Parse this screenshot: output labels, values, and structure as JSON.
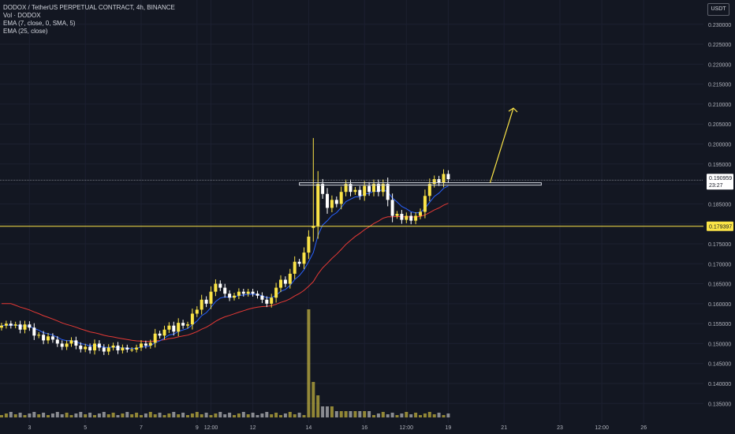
{
  "legend": {
    "symbol": "DODOX / TetherUS PERPETUAL CONTRACT, 4h, BINANCE",
    "volume": "Vol · DODOX",
    "ema_fast": "EMA (7, close, 0, SMA, 5)",
    "ema_slow": "EMA (25, close)"
  },
  "currency": "USDT",
  "price_tag": {
    "price": "0.190959",
    "countdown": "23:27"
  },
  "level_tag": {
    "price": "0.179397"
  },
  "colors": {
    "background": "#131722",
    "up_candle": "#fbe447",
    "down_candle": "#ffffff",
    "ema_fast": "#2962ff",
    "ema_slow": "#e53935",
    "level_line": "#fbe447",
    "arrow": "#fbe447"
  },
  "chart_data": {
    "type": "candlestick",
    "y_ticks": [
      "0.135000",
      "0.140000",
      "0.145000",
      "0.150000",
      "0.155000",
      "0.160000",
      "0.165000",
      "0.170000",
      "0.175000",
      "0.180000",
      "0.185000",
      "0.190000",
      "0.195000",
      "0.200000",
      "0.205000",
      "0.210000",
      "0.215000",
      "0.220000",
      "0.225000",
      "0.230000"
    ],
    "ylim": [
      0.1315,
      0.2345
    ],
    "x_ticks": [
      {
        "label": "3",
        "bar": 6
      },
      {
        "label": "5",
        "bar": 18
      },
      {
        "label": "7",
        "bar": 30
      },
      {
        "label": "9",
        "bar": 42
      },
      {
        "label": "12:00",
        "bar": 45
      },
      {
        "label": "12",
        "bar": 54
      },
      {
        "label": "14",
        "bar": 66
      },
      {
        "label": "16",
        "bar": 78
      },
      {
        "label": "12:00",
        "bar": 87
      },
      {
        "label": "19",
        "bar": 96
      },
      {
        "label": "21",
        "bar": 108
      },
      {
        "label": "23",
        "bar": 120
      },
      {
        "label": "12:00",
        "bar": 129
      },
      {
        "label": "26",
        "bar": 138
      }
    ],
    "horizontal_level": 0.179397,
    "current_price": 0.190959,
    "range_box": [
      0.1897,
      0.1903
    ],
    "close": [
      0.1545,
      0.155,
      0.1545,
      0.1548,
      0.1535,
      0.1548,
      0.154,
      0.152,
      0.1522,
      0.1508,
      0.1518,
      0.151,
      0.15,
      0.1492,
      0.15,
      0.1508,
      0.1495,
      0.1486,
      0.1492,
      0.1483,
      0.15,
      0.149,
      0.148,
      0.149,
      0.1495,
      0.1483,
      0.149,
      0.1485,
      0.1485,
      0.149,
      0.15,
      0.1495,
      0.1502,
      0.1525,
      0.152,
      0.1535,
      0.1545,
      0.153,
      0.1552,
      0.1545,
      0.1548,
      0.1575,
      0.1585,
      0.161,
      0.16,
      0.163,
      0.165,
      0.164,
      0.1625,
      0.1615,
      0.162,
      0.163,
      0.1625,
      0.163,
      0.1625,
      0.162,
      0.161,
      0.16,
      0.1615,
      0.164,
      0.166,
      0.165,
      0.1675,
      0.1705,
      0.17,
      0.1728,
      0.1768,
      0.1795,
      0.19,
      0.1875,
      0.184,
      0.186,
      0.185,
      0.188,
      0.19,
      0.188,
      0.1885,
      0.187,
      0.1895,
      0.188,
      0.19,
      0.188,
      0.19,
      0.186,
      0.182,
      0.1825,
      0.181,
      0.182,
      0.1808,
      0.182,
      0.183,
      0.187,
      0.19,
      0.1912,
      0.1903,
      0.1925,
      0.1912
    ],
    "volume_note": "volume spike at bar 66"
  }
}
